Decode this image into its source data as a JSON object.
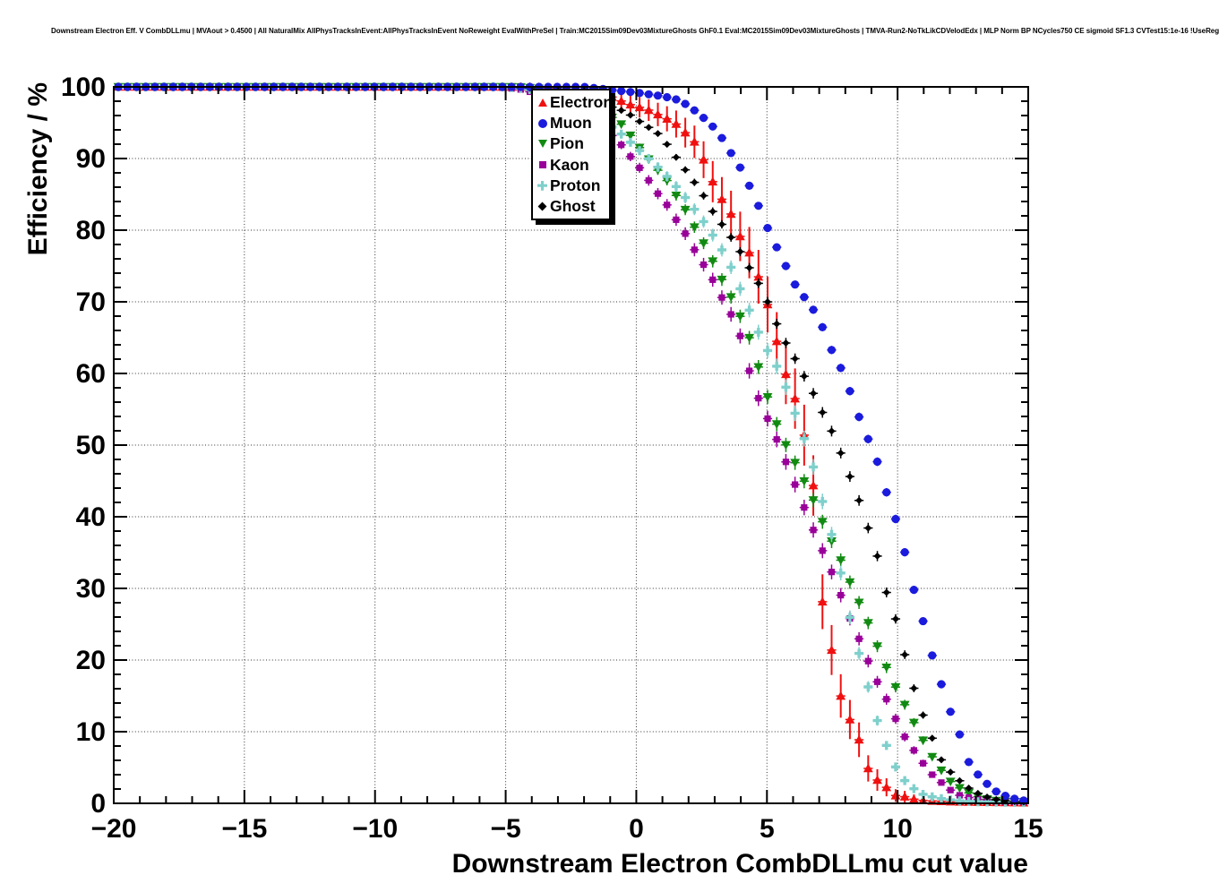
{
  "header": {
    "title": "Downstream Electron Eff. V CombDLLmu | MVAout > 0.4500 | All NaturalMix AllPhysTracksInEvent:AllPhysTracksInEvent NoReweight EvalWithPreSel | Train:MC2015Sim09Dev03MixtureGhosts GhF0.1 Eval:MC2015Sim09Dev03MixtureGhosts | TMVA-Run2-NoTkLikCDVelodEdx | MLP Norm BP NCycles750 CE sigmoid SF1.3 CVTest15:1e-16 !UseReg"
  },
  "chart_data": {
    "type": "scatter",
    "title": "Downstream Electron Eff. V CombDLLmu",
    "xlabel": "Downstream Electron CombDLLmu cut value",
    "ylabel": "Efficiency / %",
    "xlim": [
      -20,
      15
    ],
    "ylim": [
      0,
      100
    ],
    "x_major_ticks": [
      -20,
      -15,
      -10,
      -5,
      0,
      5,
      10,
      15
    ],
    "x_tick_labels": [
      "−20",
      "−15",
      "−10",
      "−5",
      "0",
      "5",
      "10",
      "15"
    ],
    "x_minor_step": 1,
    "y_major_ticks": [
      0,
      10,
      20,
      30,
      40,
      50,
      60,
      70,
      80,
      90,
      100
    ],
    "y_tick_labels": [
      "0",
      "10",
      "20",
      "30",
      "40",
      "50",
      "60",
      "70",
      "80",
      "90",
      "100"
    ],
    "y_minor_step": 2,
    "grid": "dotted",
    "bins": 100,
    "bin_width": 0.35,
    "legend_position": "top-center",
    "draw_order": [
      0,
      2,
      3,
      4,
      5,
      1
    ],
    "series": [
      {
        "name": "Electron",
        "marker": "triangle-up",
        "color": "#f01010",
        "err_scale": 0.85,
        "points": [
          [
            -20,
            100
          ],
          [
            -4,
            100
          ],
          [
            -3,
            99.8
          ],
          [
            -2,
            99.4
          ],
          [
            -1,
            98.7
          ],
          [
            -0.3,
            97.6
          ],
          [
            0.45,
            96.8
          ],
          [
            1.2,
            95.5
          ],
          [
            1.5,
            94.9
          ],
          [
            2.2,
            92.5
          ],
          [
            2.5,
            90.5
          ],
          [
            2.85,
            87.4
          ],
          [
            3.1,
            85.3
          ],
          [
            3.6,
            82.5
          ],
          [
            3.9,
            79.6
          ],
          [
            4.3,
            77.1
          ],
          [
            4.6,
            74.3
          ],
          [
            5,
            70
          ],
          [
            5.3,
            65.5
          ],
          [
            5.7,
            60.1
          ],
          [
            6,
            57.6
          ],
          [
            6.4,
            51.7
          ],
          [
            6.7,
            48
          ],
          [
            7.1,
            28.6
          ],
          [
            7.4,
            23.1
          ],
          [
            7.7,
            16.3
          ],
          [
            8.1,
            12.1
          ],
          [
            8.4,
            10.5
          ],
          [
            8.8,
            5.3
          ],
          [
            9.1,
            3.6
          ],
          [
            9.5,
            2.5
          ],
          [
            9.9,
            1.1
          ],
          [
            10.2,
            1
          ],
          [
            10.6,
            0.6
          ],
          [
            11,
            0.4
          ],
          [
            11.5,
            0.3
          ],
          [
            12.5,
            0.2
          ],
          [
            15,
            0.1
          ]
        ]
      },
      {
        "name": "Muon",
        "marker": "circle",
        "color": "#1b1bdd",
        "err_scale": 0.12,
        "points": [
          [
            -20,
            100
          ],
          [
            -2,
            100
          ],
          [
            -1,
            99.6
          ],
          [
            0,
            99.2
          ],
          [
            1,
            98.7
          ],
          [
            1.5,
            98.3
          ],
          [
            2,
            97.4
          ],
          [
            2.6,
            95.6
          ],
          [
            3,
            94.2
          ],
          [
            3.35,
            92.5
          ],
          [
            3.65,
            90.6
          ],
          [
            4,
            88.6
          ],
          [
            4.3,
            86.4
          ],
          [
            4.7,
            83.2
          ],
          [
            5,
            80.5
          ],
          [
            5.35,
            77.8
          ],
          [
            5.7,
            75.2
          ],
          [
            6,
            72.8
          ],
          [
            6.35,
            71
          ],
          [
            6.7,
            69.4
          ],
          [
            7.1,
            66.7
          ],
          [
            7.4,
            63.8
          ],
          [
            7.8,
            61
          ],
          [
            8.15,
            57.8
          ],
          [
            8.45,
            54.6
          ],
          [
            8.8,
            51.5
          ],
          [
            9.2,
            48
          ],
          [
            9.5,
            44.2
          ],
          [
            9.9,
            40
          ],
          [
            10.2,
            36.3
          ],
          [
            10.5,
            31.3
          ],
          [
            10.9,
            26.5
          ],
          [
            11.25,
            21.5
          ],
          [
            11.65,
            16.9
          ],
          [
            12,
            13
          ],
          [
            12.35,
            9.9
          ],
          [
            12.7,
            5.9
          ],
          [
            13,
            4.3
          ],
          [
            13.4,
            2.8
          ],
          [
            13.7,
            1.8
          ],
          [
            14,
            1.2
          ],
          [
            14.4,
            0.7
          ],
          [
            14.8,
            0.4
          ]
        ]
      },
      {
        "name": "Pion",
        "marker": "triangle-down",
        "color": "#118a11",
        "err_scale": 0.2,
        "points": [
          [
            -20,
            100
          ],
          [
            -4.5,
            100
          ],
          [
            -3.5,
            99.7
          ],
          [
            -2.5,
            98.8
          ],
          [
            -1.5,
            97.2
          ],
          [
            -0.6,
            94.9
          ],
          [
            -0.3,
            93.6
          ],
          [
            0,
            92.1
          ],
          [
            0.35,
            90.5
          ],
          [
            0.7,
            88.8
          ],
          [
            1.1,
            87.4
          ],
          [
            1.4,
            85.5
          ],
          [
            1.8,
            83.4
          ],
          [
            2.1,
            81.2
          ],
          [
            2.45,
            79
          ],
          [
            2.8,
            76.7
          ],
          [
            3.1,
            74.2
          ],
          [
            3.5,
            71.7
          ],
          [
            3.8,
            69.2
          ],
          [
            4.2,
            66.4
          ],
          [
            4.5,
            63
          ],
          [
            5,
            57
          ],
          [
            5.3,
            53.6
          ],
          [
            5.6,
            50.9
          ],
          [
            6,
            48.1
          ],
          [
            6.35,
            45.5
          ],
          [
            6.7,
            43
          ],
          [
            7,
            40.3
          ],
          [
            7.35,
            37.5
          ],
          [
            7.75,
            34.6
          ],
          [
            8.1,
            31.5
          ],
          [
            8.4,
            29
          ],
          [
            8.8,
            25.9
          ],
          [
            9.1,
            23
          ],
          [
            9.45,
            20
          ],
          [
            9.8,
            17.1
          ],
          [
            10.2,
            14.3
          ],
          [
            10.55,
            11.8
          ],
          [
            10.9,
            9.3
          ],
          [
            11.25,
            6.9
          ],
          [
            11.6,
            5
          ],
          [
            11.9,
            3.4
          ],
          [
            12.25,
            2.4
          ],
          [
            12.7,
            1.5
          ],
          [
            13,
            1
          ],
          [
            13.4,
            0.6
          ],
          [
            13.8,
            0.35
          ],
          [
            14.2,
            0.2
          ]
        ]
      },
      {
        "name": "Kaon",
        "marker": "square",
        "color": "#990099",
        "err_scale": 0.22,
        "points": [
          [
            -20,
            100
          ],
          [
            -5.5,
            100
          ],
          [
            -4.5,
            99.7
          ],
          [
            -3.5,
            98.8
          ],
          [
            -2.5,
            97.2
          ],
          [
            -1.5,
            95
          ],
          [
            -0.7,
            92.5
          ],
          [
            -0.3,
            90.6
          ],
          [
            0,
            89.3
          ],
          [
            0.4,
            87.4
          ],
          [
            0.7,
            85.6
          ],
          [
            1.1,
            84
          ],
          [
            1.4,
            82.1
          ],
          [
            1.75,
            80.3
          ],
          [
            2.1,
            78.1
          ],
          [
            2.4,
            76.1
          ],
          [
            2.8,
            74
          ],
          [
            3.1,
            71.8
          ],
          [
            3.45,
            69.4
          ],
          [
            3.8,
            67.1
          ],
          [
            4.1,
            63.9
          ],
          [
            4.45,
            58.4
          ],
          [
            4.85,
            55.1
          ],
          [
            5.25,
            51.9
          ],
          [
            5.6,
            48.8
          ],
          [
            5.95,
            45.6
          ],
          [
            6.3,
            42.5
          ],
          [
            6.6,
            39.6
          ],
          [
            7,
            36.3
          ],
          [
            7.35,
            33.4
          ],
          [
            7.7,
            30.3
          ],
          [
            8.05,
            26.8
          ],
          [
            8.4,
            24
          ],
          [
            8.75,
            21.1
          ],
          [
            9.05,
            18.1
          ],
          [
            9.45,
            15.5
          ],
          [
            9.8,
            12.8
          ],
          [
            10.15,
            10
          ],
          [
            10.5,
            8
          ],
          [
            10.85,
            6.3
          ],
          [
            11.15,
            4.6
          ],
          [
            11.5,
            3.4
          ],
          [
            11.85,
            2.4
          ],
          [
            12.2,
            1.3
          ],
          [
            12.6,
            0.9
          ],
          [
            13,
            0.6
          ],
          [
            13.5,
            0.35
          ],
          [
            14,
            0.2
          ]
        ]
      },
      {
        "name": "Proton",
        "marker": "cross",
        "color": "#7fd0cc",
        "err_scale": 0.22,
        "points": [
          [
            -20,
            100
          ],
          [
            -5,
            100
          ],
          [
            -4,
            99.6
          ],
          [
            -3,
            98.6
          ],
          [
            -2,
            96.9
          ],
          [
            -1,
            94.6
          ],
          [
            -0.5,
            93.2
          ],
          [
            0,
            91.5
          ],
          [
            0.5,
            89.9
          ],
          [
            1,
            88.2
          ],
          [
            1.5,
            86.2
          ],
          [
            2,
            84
          ],
          [
            2.5,
            81.6
          ],
          [
            3,
            78.9
          ],
          [
            3.5,
            75.9
          ],
          [
            4,
            71.6
          ],
          [
            4.4,
            68.2
          ],
          [
            4.85,
            64.2
          ],
          [
            5.25,
            61.9
          ],
          [
            5.6,
            59.4
          ],
          [
            6,
            55.2
          ],
          [
            6.35,
            51.7
          ],
          [
            6.7,
            48
          ],
          [
            7.05,
            43.1
          ],
          [
            7.4,
            38.6
          ],
          [
            7.75,
            33.6
          ],
          [
            8.05,
            27.8
          ],
          [
            8.45,
            21.9
          ],
          [
            8.8,
            17.4
          ],
          [
            9.1,
            12.8
          ],
          [
            9.45,
            9.3
          ],
          [
            9.8,
            5.9
          ],
          [
            10.15,
            3.6
          ],
          [
            10.5,
            2.4
          ],
          [
            10.85,
            1.4
          ],
          [
            11.2,
            1
          ],
          [
            11.6,
            0.7
          ],
          [
            12,
            0.5
          ],
          [
            12.5,
            0.3
          ],
          [
            13.2,
            0.2
          ],
          [
            15,
            0.1
          ]
        ]
      },
      {
        "name": "Ghost",
        "marker": "diamond",
        "color": "#000000",
        "err_scale": 0.15,
        "points": [
          [
            -20,
            100
          ],
          [
            -5,
            100
          ],
          [
            -4,
            99.8
          ],
          [
            -3,
            99.4
          ],
          [
            -2,
            98.6
          ],
          [
            -1.1,
            97.4
          ],
          [
            -0.4,
            96.5
          ],
          [
            0,
            95.5
          ],
          [
            0.35,
            94.6
          ],
          [
            0.7,
            93.9
          ],
          [
            1,
            92.9
          ],
          [
            1.5,
            90.3
          ],
          [
            2,
            87.8
          ],
          [
            2.5,
            85.3
          ],
          [
            2.85,
            83
          ],
          [
            3.2,
            81.2
          ],
          [
            3.55,
            79.4
          ],
          [
            3.9,
            77.5
          ],
          [
            4.2,
            75.5
          ],
          [
            4.55,
            73.4
          ],
          [
            4.9,
            71.1
          ],
          [
            5.25,
            68
          ],
          [
            5.6,
            65
          ],
          [
            6,
            62.6
          ],
          [
            6.35,
            60.1
          ],
          [
            6.7,
            57.8
          ],
          [
            7.05,
            55.1
          ],
          [
            7.4,
            52.6
          ],
          [
            7.75,
            49.6
          ],
          [
            8.1,
            46.3
          ],
          [
            8.45,
            43.1
          ],
          [
            8.85,
            38.7
          ],
          [
            9.2,
            34.9
          ],
          [
            9.5,
            30.2
          ],
          [
            9.9,
            26.1
          ],
          [
            10.2,
            21.8
          ],
          [
            10.55,
            16.9
          ],
          [
            10.9,
            13
          ],
          [
            11.25,
            9.8
          ],
          [
            11.6,
            6.5
          ],
          [
            11.9,
            4.8
          ],
          [
            12.3,
            3.4
          ],
          [
            12.6,
            2.4
          ],
          [
            13,
            1.5
          ],
          [
            13.4,
            0.9
          ],
          [
            13.8,
            0.5
          ],
          [
            14.2,
            0.3
          ],
          [
            15,
            0.15
          ]
        ]
      }
    ]
  }
}
